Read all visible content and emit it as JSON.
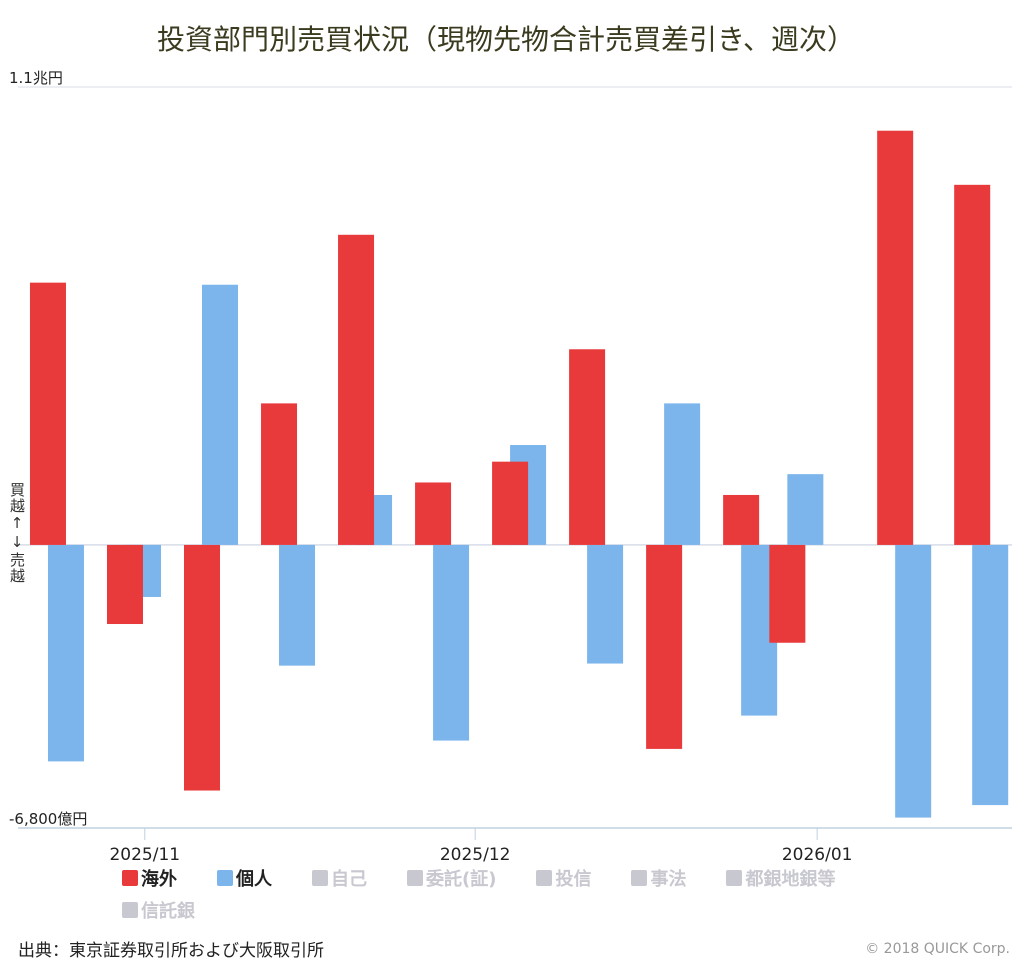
{
  "chart_data": {
    "type": "bar",
    "title": "投資部門別売買状況（現物先物合計売買差引き、週次）",
    "y_label": "買越↑↓売越",
    "x": [
      0,
      1,
      2,
      3,
      4,
      5,
      6,
      7,
      8,
      9,
      9.6,
      11,
      12
    ],
    "xlim": [
      -0.506,
      12.4
    ],
    "xticks": [
      {
        "value": 1.14,
        "label": "2025/11"
      },
      {
        "value": 5.43,
        "label": "2025/12"
      },
      {
        "value": 9.87,
        "label": "2026/01"
      }
    ],
    "ylim": [
      -6800,
      11000
    ],
    "yticks": [
      {
        "value": -6800,
        "label": "-6,800億円"
      },
      {
        "value": 11000,
        "label": "1.1兆円"
      }
    ],
    "series": [
      {
        "name": "海外",
        "color": "#e8393b",
        "visible": true,
        "values": [
          6300,
          -1900,
          -5900,
          3400,
          7450,
          1500,
          2000,
          4700,
          -4900,
          1200,
          -2350,
          9950,
          8650
        ]
      },
      {
        "name": "個人",
        "color": "#7cb5ec",
        "visible": true,
        "values": [
          -5200,
          -1250,
          6250,
          -2900,
          1200,
          -4700,
          2400,
          -2850,
          3400,
          -4100,
          1700,
          -6550,
          -6250
        ]
      },
      {
        "name": "自己",
        "visible": false,
        "values": [
          null,
          null,
          null,
          null,
          null,
          null,
          null,
          null,
          null,
          null,
          null,
          null,
          null
        ]
      },
      {
        "name": "委託(証)",
        "visible": false,
        "values": [
          null,
          null,
          null,
          null,
          null,
          null,
          null,
          null,
          null,
          null,
          null,
          null,
          null
        ]
      },
      {
        "name": "投信",
        "visible": false,
        "values": [
          null,
          null,
          null,
          null,
          null,
          null,
          null,
          null,
          null,
          null,
          null,
          null,
          null
        ]
      },
      {
        "name": "事法",
        "visible": false,
        "values": [
          null,
          null,
          null,
          null,
          null,
          null,
          null,
          null,
          null,
          null,
          null,
          null,
          null
        ]
      },
      {
        "name": "都銀地銀等",
        "visible": false,
        "values": [
          null,
          null,
          null,
          null,
          null,
          null,
          null,
          null,
          null,
          null,
          null,
          null,
          null
        ]
      },
      {
        "name": "信託銀",
        "visible": false,
        "values": [
          null,
          null,
          null,
          null,
          null,
          null,
          null,
          null,
          null,
          null,
          null,
          null,
          null
        ]
      }
    ]
  },
  "source": "出典：東京証券取引所および大阪取引所",
  "copyright": "© 2018 QUICK Corp."
}
